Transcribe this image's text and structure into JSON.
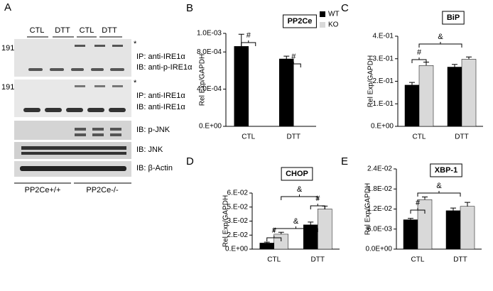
{
  "blot": {
    "panel": "A",
    "lanes": [
      "CTL",
      "DTT",
      "CTL",
      "DTT"
    ],
    "strips": [
      {
        "marker": "191",
        "star": "*",
        "ip": "IP: anti-IRE1α",
        "ib": "IB: anti-p-IRE1α"
      },
      {
        "marker": "191",
        "star": "*",
        "ip": "IP: anti-IRE1α",
        "ib": "IB: anti-IRE1α"
      },
      {
        "ib": "IB: p-JNK"
      },
      {
        "ib": "IB: JNK"
      },
      {
        "ib": "IB: β-Actin"
      }
    ],
    "genotypes": [
      "PP2Ce+/+",
      "PP2Ce-/-"
    ]
  },
  "chart_data": [
    {
      "type": "bar",
      "panel": "B",
      "title": "PP2Ce",
      "ylabel": "Rel Exp/GAPDH",
      "categories": [
        "CTL",
        "DTT"
      ],
      "series": [
        {
          "name": "WT",
          "color": "#000000",
          "values": [
            0.00086,
            0.000725
          ],
          "errors": [
            0.00013,
            3e-05
          ]
        },
        {
          "name": "KO",
          "color": "#d9d9d9",
          "values": [
            0,
            0
          ],
          "errors": [
            0,
            0
          ]
        }
      ],
      "legend": "upper right",
      "ylim": [
        0,
        0.001
      ],
      "yticks": [
        {
          "value": 0,
          "label": "0.E+00"
        },
        {
          "value": 0.0004,
          "label": "4.0E-04"
        },
        {
          "value": 0.0008,
          "label": "8.0E-04"
        },
        {
          "value": 0.001,
          "label": "1.0E-03"
        }
      ],
      "annotations": [
        "#",
        "#"
      ]
    },
    {
      "type": "bar",
      "panel": "C",
      "title": "BiP",
      "ylabel": "Rel Exp/GAPDH",
      "categories": [
        "CTL",
        "DTT"
      ],
      "series": [
        {
          "color": "#000000",
          "values": [
            0.183,
            0.263
          ],
          "errors": [
            0.012,
            0.012
          ]
        },
        {
          "color": "#d9d9d9",
          "values": [
            0.27,
            0.298
          ],
          "errors": [
            0.015,
            0.01
          ]
        }
      ],
      "ylim": [
        0,
        0.4
      ],
      "yticks": [
        {
          "value": 0,
          "label": "0.E+00"
        },
        {
          "value": 0.1,
          "label": "1.E-01"
        },
        {
          "value": 0.2,
          "label": "2.E-01"
        },
        {
          "value": 0.3,
          "label": "3.E-01"
        },
        {
          "value": 0.4,
          "label": "4.E-01"
        }
      ],
      "annotations": [
        "#",
        "&"
      ]
    },
    {
      "type": "bar",
      "panel": "D",
      "title": "CHOP",
      "ylabel": "Rel Exp/GAPDH",
      "categories": [
        "CTL",
        "DTT"
      ],
      "series": [
        {
          "color": "#000000",
          "values": [
            0.0065,
            0.026
          ],
          "errors": [
            0.001,
            0.003
          ]
        },
        {
          "color": "#d9d9d9",
          "values": [
            0.016,
            0.043
          ],
          "errors": [
            0.002,
            0.003
          ]
        }
      ],
      "ylim": [
        0,
        0.06
      ],
      "yticks": [
        {
          "value": 0,
          "label": "0.E+00"
        },
        {
          "value": 0.015,
          "label": "2.E-02"
        },
        {
          "value": 0.03,
          "label": "3.E-02"
        },
        {
          "value": 0.045,
          "label": "5.E-02"
        },
        {
          "value": 0.06,
          "label": "6.E-02"
        }
      ],
      "annotations": [
        "#",
        "&",
        "#",
        "&"
      ]
    },
    {
      "type": "bar",
      "panel": "E",
      "title": "XBP-1",
      "ylabel": "Rel Exp/GAPDH",
      "categories": [
        "CTL",
        "DTT"
      ],
      "series": [
        {
          "color": "#000000",
          "values": [
            0.0088,
            0.0115
          ],
          "errors": [
            0.0004,
            0.0008
          ]
        },
        {
          "color": "#d9d9d9",
          "values": [
            0.0148,
            0.0128
          ],
          "errors": [
            0.0008,
            0.0012
          ]
        }
      ],
      "ylim": [
        0,
        0.024
      ],
      "yticks": [
        {
          "value": 0,
          "label": "0.0E+00"
        },
        {
          "value": 0.006,
          "label": "6.0E-03"
        },
        {
          "value": 0.012,
          "label": "1.2E-02"
        },
        {
          "value": 0.018,
          "label": "1.8E-02"
        },
        {
          "value": 0.024,
          "label": "2.4E-02"
        }
      ],
      "annotations": [
        "#",
        "&"
      ]
    }
  ]
}
